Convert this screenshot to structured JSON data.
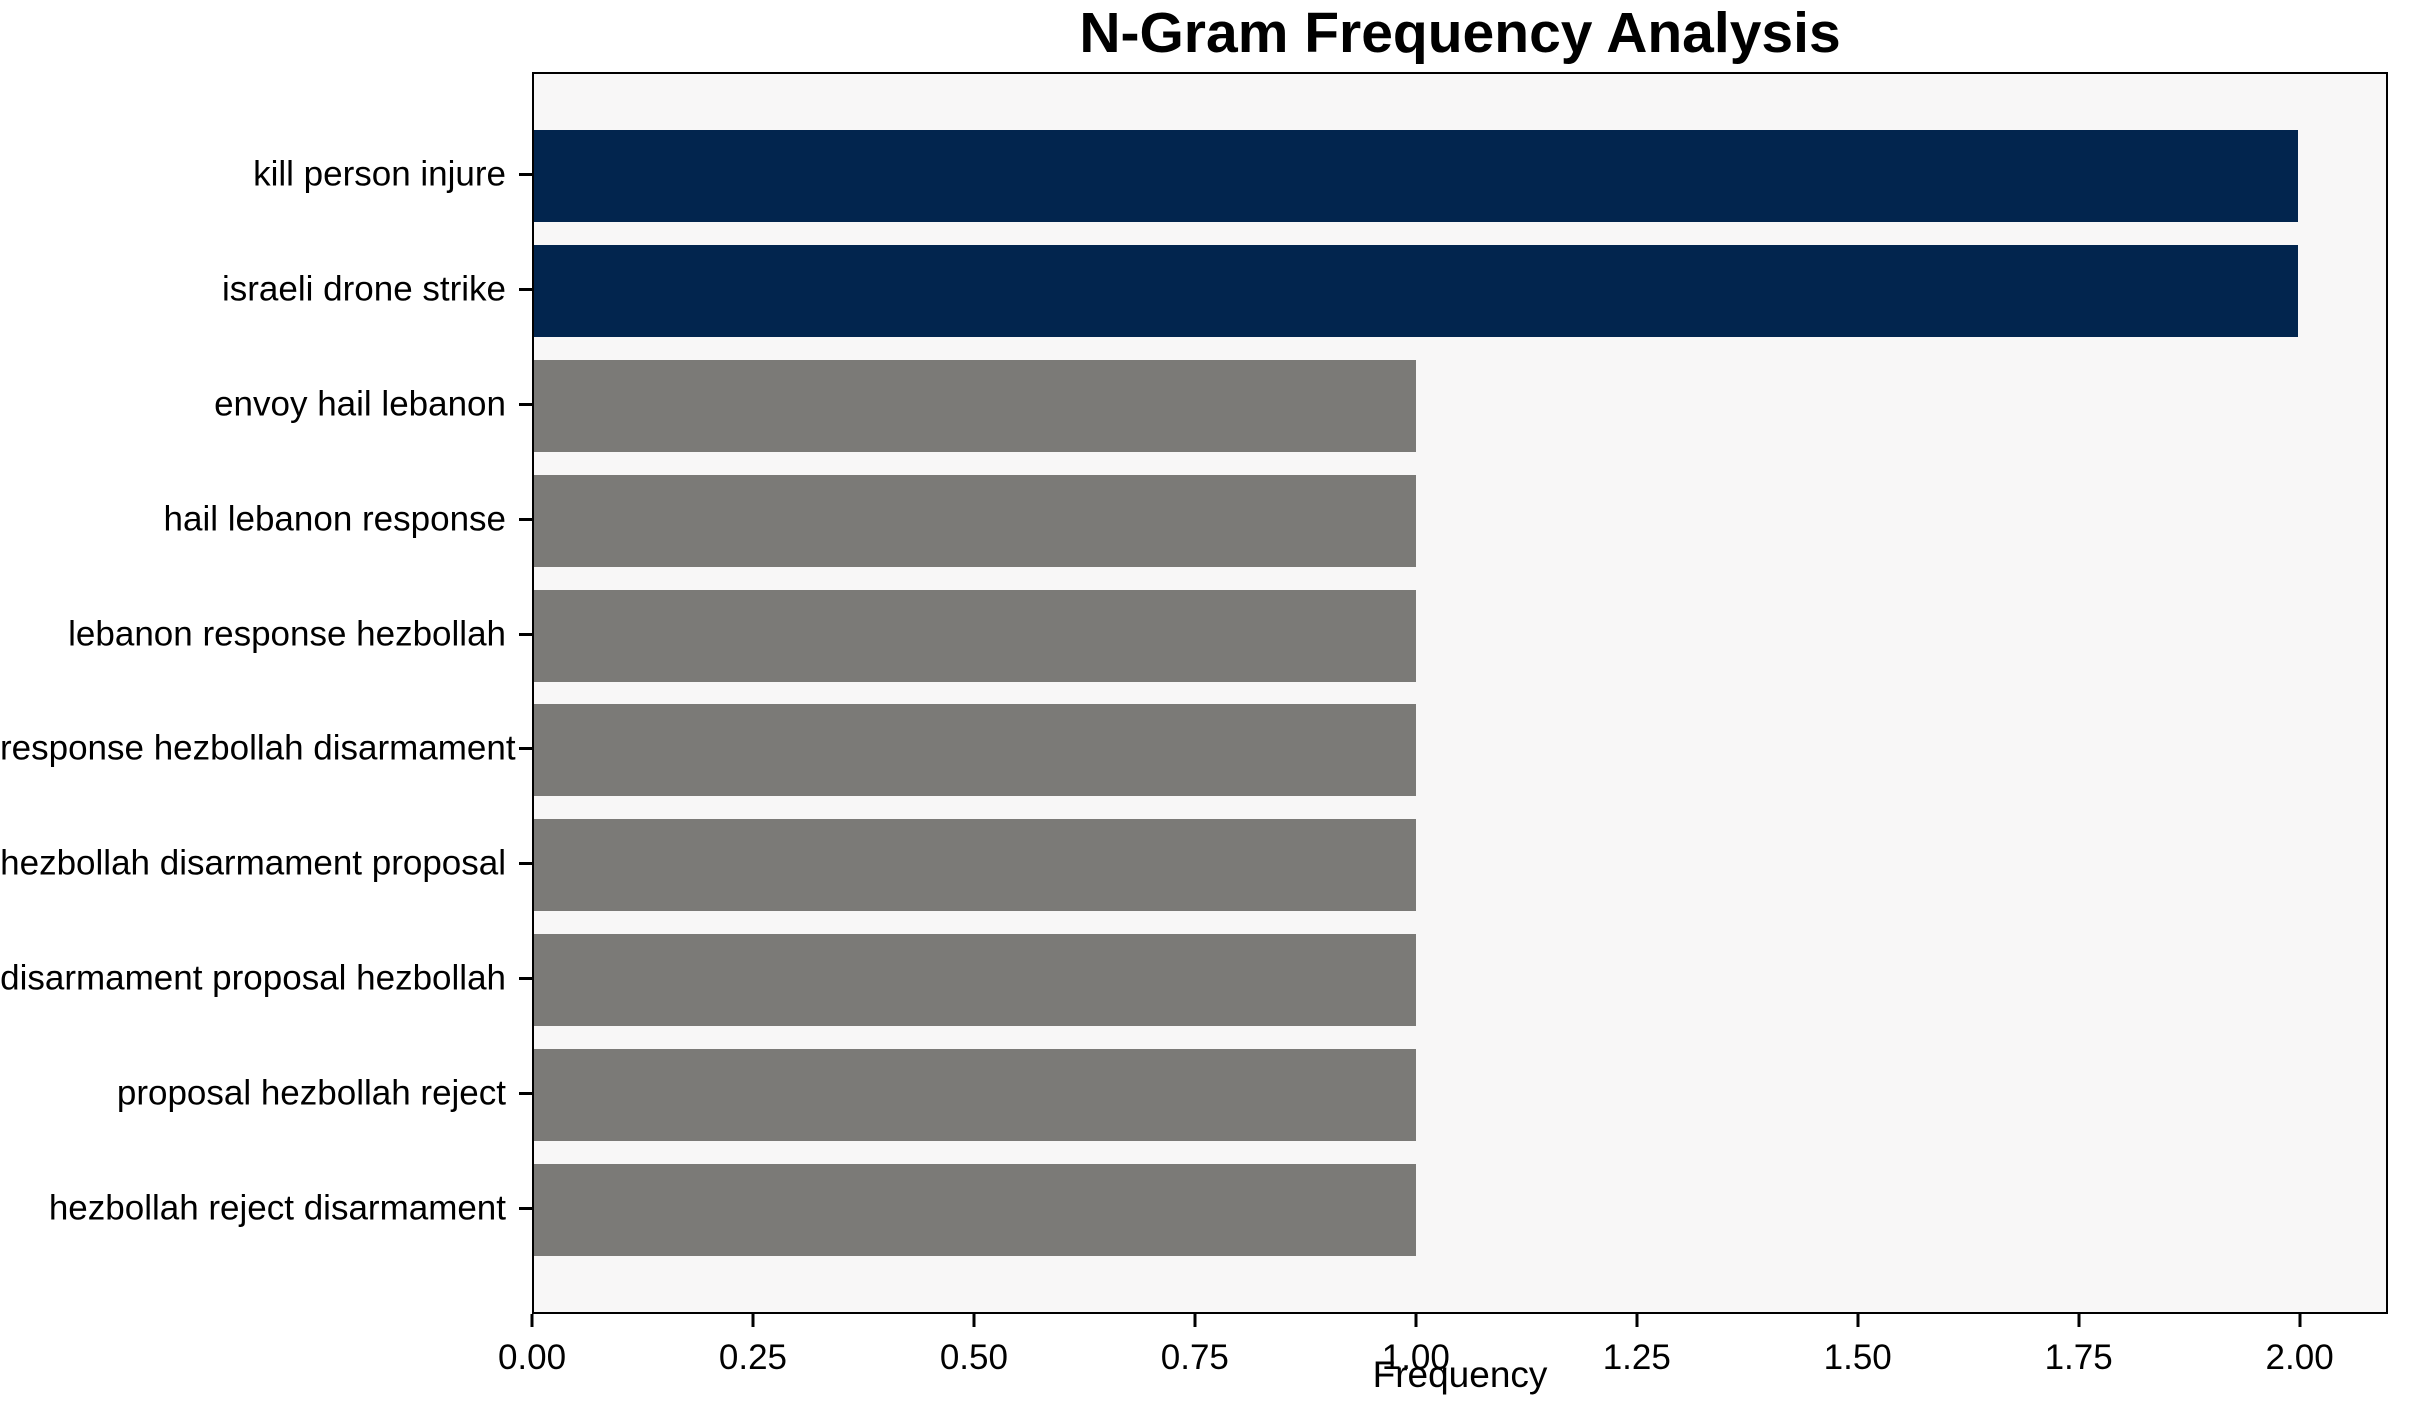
{
  "chart_data": {
    "type": "bar",
    "orientation": "horizontal",
    "title": "N-Gram Frequency Analysis",
    "xlabel": "Frequency",
    "ylabel": "",
    "categories": [
      "kill person injure",
      "israeli drone strike",
      "envoy hail lebanon",
      "hail lebanon response",
      "lebanon response hezbollah",
      "response hezbollah disarmament",
      "hezbollah disarmament proposal",
      "disarmament proposal hezbollah",
      "proposal hezbollah reject",
      "hezbollah reject disarmament"
    ],
    "values": [
      2,
      2,
      1,
      1,
      1,
      1,
      1,
      1,
      1,
      1
    ],
    "bar_colors": [
      "#02254E",
      "#02254E",
      "#7B7A77",
      "#7B7A77",
      "#7B7A77",
      "#7B7A77",
      "#7B7A77",
      "#7B7A77",
      "#7B7A77",
      "#7B7A77"
    ],
    "xlim": [
      0,
      2.1
    ],
    "x_ticks": [
      0,
      0.25,
      0.5,
      0.75,
      1.0,
      1.25,
      1.5,
      1.75,
      2.0
    ],
    "x_tick_labels": [
      "0.00",
      "0.25",
      "0.50",
      "0.75",
      "1.00",
      "1.25",
      "1.50",
      "1.75",
      "2.00"
    ],
    "grid": false,
    "legend": null,
    "colors": {
      "highlight": "#02254E",
      "default_bar": "#7B7A77",
      "plot_background": "#F8F7F7",
      "figure_background": "#FFFFFF",
      "spine": "#000000",
      "text": "#000000"
    }
  }
}
